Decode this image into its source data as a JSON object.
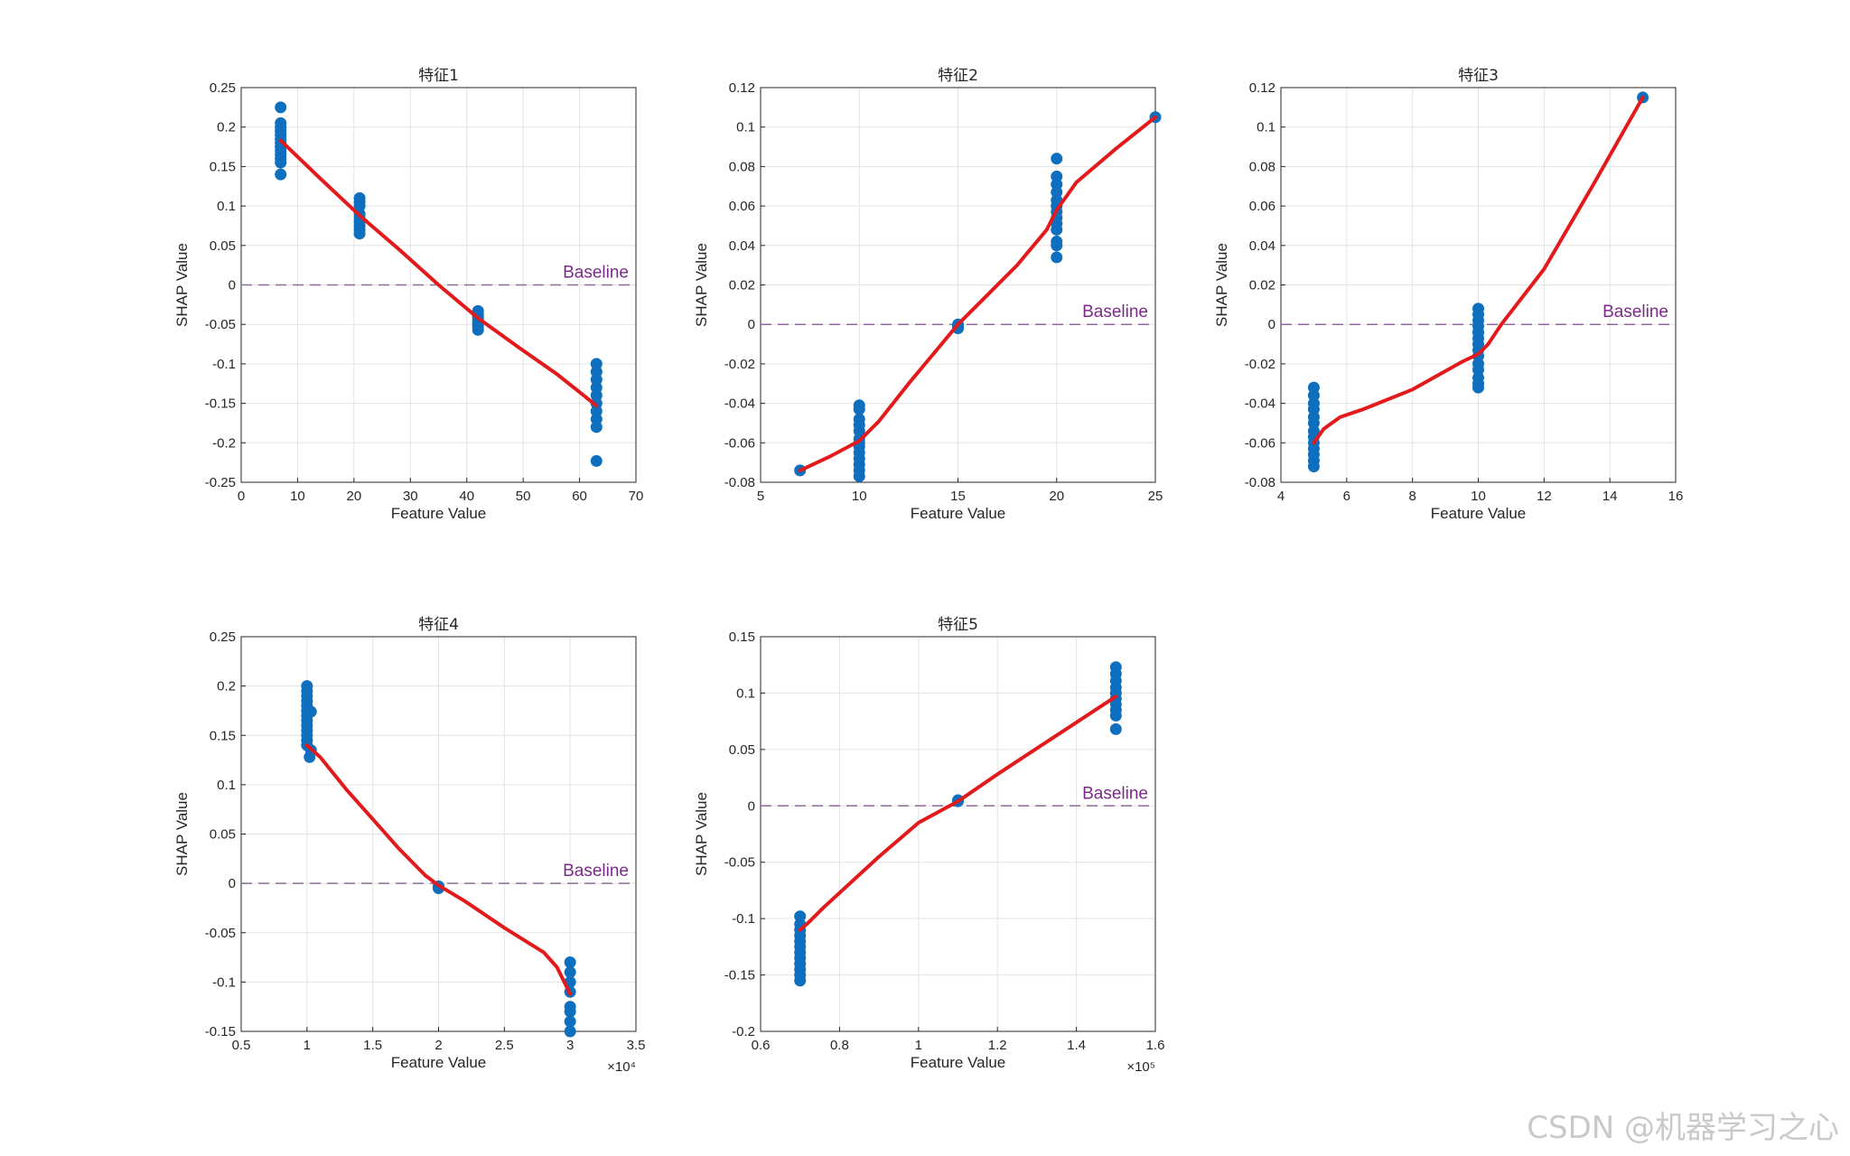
{
  "watermark": "CSDN @机器学习之心",
  "chart_data": [
    {
      "type": "scatter",
      "title": "特征1",
      "xlabel": "Feature Value",
      "ylabel": "SHAP Value",
      "xlim": [
        0,
        70
      ],
      "ylim": [
        -0.25,
        0.25
      ],
      "xticks": [
        0,
        10,
        20,
        30,
        40,
        50,
        60,
        70
      ],
      "xtick_labels": [
        "0",
        "10",
        "20",
        "30",
        "40",
        "50",
        "60",
        "70"
      ],
      "yticks": [
        -0.25,
        -0.2,
        -0.15,
        -0.1,
        -0.05,
        0,
        0.05,
        0.1,
        0.15,
        0.2,
        0.25
      ],
      "ytick_labels": [
        "-0.25",
        "-0.2",
        "-0.15",
        "-0.1",
        "-0.05",
        "0",
        "0.05",
        "0.1",
        "0.15",
        "0.2",
        "0.25"
      ],
      "x_multiplier": "",
      "grid": true,
      "baseline": {
        "y": 0,
        "label": "Baseline"
      },
      "series": [
        {
          "type": "scatter",
          "points": [
            [
              7,
              0.225
            ],
            [
              7,
              0.205
            ],
            [
              7,
              0.2
            ],
            [
              7,
              0.195
            ],
            [
              7,
              0.19
            ],
            [
              7,
              0.185
            ],
            [
              7,
              0.18
            ],
            [
              7,
              0.175
            ],
            [
              7,
              0.17
            ],
            [
              7,
              0.165
            ],
            [
              7,
              0.16
            ],
            [
              7,
              0.155
            ],
            [
              7,
              0.14
            ],
            [
              21,
              0.11
            ],
            [
              21,
              0.105
            ],
            [
              21,
              0.1
            ],
            [
              21,
              0.09
            ],
            [
              21,
              0.085
            ],
            [
              21,
              0.08
            ],
            [
              21,
              0.075
            ],
            [
              21,
              0.07
            ],
            [
              21,
              0.065
            ],
            [
              42,
              -0.033
            ],
            [
              42,
              -0.037
            ],
            [
              42,
              -0.04
            ],
            [
              42,
              -0.043
            ],
            [
              42,
              -0.047
            ],
            [
              42,
              -0.05
            ],
            [
              42,
              -0.053
            ],
            [
              42,
              -0.057
            ],
            [
              63,
              -0.1
            ],
            [
              63,
              -0.11
            ],
            [
              63,
              -0.12
            ],
            [
              63,
              -0.13
            ],
            [
              63,
              -0.14
            ],
            [
              63,
              -0.15
            ],
            [
              63,
              -0.16
            ],
            [
              63,
              -0.17
            ],
            [
              63,
              -0.18
            ],
            [
              63,
              -0.223
            ]
          ]
        },
        {
          "type": "line",
          "color": "#e31a1c",
          "points": [
            [
              7,
              0.183
            ],
            [
              14,
              0.135
            ],
            [
              21,
              0.088
            ],
            [
              28,
              0.045
            ],
            [
              35,
              0.0
            ],
            [
              42,
              -0.042
            ],
            [
              49,
              -0.078
            ],
            [
              56,
              -0.113
            ],
            [
              63,
              -0.153
            ]
          ]
        }
      ]
    },
    {
      "type": "scatter",
      "title": "特征2",
      "xlabel": "Feature Value",
      "ylabel": "SHAP Value",
      "xlim": [
        5,
        25
      ],
      "ylim": [
        -0.08,
        0.12
      ],
      "xticks": [
        5,
        10,
        15,
        20,
        25
      ],
      "xtick_labels": [
        "5",
        "10",
        "15",
        "20",
        "25"
      ],
      "yticks": [
        -0.08,
        -0.06,
        -0.04,
        -0.02,
        0,
        0.02,
        0.04,
        0.06,
        0.08,
        0.1,
        0.12
      ],
      "ytick_labels": [
        "-0.08",
        "-0.06",
        "-0.04",
        "-0.02",
        "0",
        "0.02",
        "0.04",
        "0.06",
        "0.08",
        "0.1",
        "0.12"
      ],
      "x_multiplier": "",
      "grid": true,
      "baseline": {
        "y": 0,
        "label": "Baseline"
      },
      "series": [
        {
          "type": "scatter",
          "points": [
            [
              7,
              -0.074
            ],
            [
              10,
              -0.041
            ],
            [
              10,
              -0.043
            ],
            [
              10,
              -0.048
            ],
            [
              10,
              -0.051
            ],
            [
              10,
              -0.054
            ],
            [
              10,
              -0.058
            ],
            [
              10,
              -0.06
            ],
            [
              10,
              -0.062
            ],
            [
              10,
              -0.065
            ],
            [
              10,
              -0.068
            ],
            [
              10,
              -0.071
            ],
            [
              10,
              -0.074
            ],
            [
              10,
              -0.077
            ],
            [
              15,
              -0.001
            ],
            [
              15,
              -0.002
            ],
            [
              15,
              0.0
            ],
            [
              20,
              0.084
            ],
            [
              20,
              0.075
            ],
            [
              20,
              0.071
            ],
            [
              20,
              0.067
            ],
            [
              20,
              0.063
            ],
            [
              20,
              0.06
            ],
            [
              20,
              0.057
            ],
            [
              20,
              0.054
            ],
            [
              20,
              0.051
            ],
            [
              20,
              0.048
            ],
            [
              20,
              0.042
            ],
            [
              20,
              0.04
            ],
            [
              20,
              0.034
            ],
            [
              25,
              0.105
            ]
          ]
        },
        {
          "type": "line",
          "color": "#e31a1c",
          "points": [
            [
              7,
              -0.074
            ],
            [
              8.5,
              -0.067
            ],
            [
              10,
              -0.059
            ],
            [
              11,
              -0.049
            ],
            [
              12.5,
              -0.03
            ],
            [
              14,
              -0.012
            ],
            [
              15,
              0.0
            ],
            [
              16.5,
              0.015
            ],
            [
              18,
              0.03
            ],
            [
              19.5,
              0.048
            ],
            [
              20,
              0.058
            ],
            [
              21,
              0.072
            ],
            [
              23,
              0.089
            ],
            [
              25,
              0.105
            ]
          ]
        }
      ]
    },
    {
      "type": "scatter",
      "title": "特征3",
      "xlabel": "Feature Value",
      "ylabel": "SHAP Value",
      "xlim": [
        4,
        16
      ],
      "ylim": [
        -0.08,
        0.12
      ],
      "xticks": [
        4,
        6,
        8,
        10,
        12,
        14,
        16
      ],
      "xtick_labels": [
        "4",
        "6",
        "8",
        "10",
        "12",
        "14",
        "16"
      ],
      "yticks": [
        -0.08,
        -0.06,
        -0.04,
        -0.02,
        0,
        0.02,
        0.04,
        0.06,
        0.08,
        0.1,
        0.12
      ],
      "ytick_labels": [
        "-0.08",
        "-0.06",
        "-0.04",
        "-0.02",
        "0",
        "0.02",
        "0.04",
        "0.06",
        "0.08",
        "0.1",
        "0.12"
      ],
      "x_multiplier": "",
      "grid": true,
      "baseline": {
        "y": 0,
        "label": "Baseline"
      },
      "series": [
        {
          "type": "scatter",
          "points": [
            [
              5,
              -0.032
            ],
            [
              5,
              -0.036
            ],
            [
              5,
              -0.04
            ],
            [
              5,
              -0.043
            ],
            [
              5,
              -0.047
            ],
            [
              5,
              -0.05
            ],
            [
              5,
              -0.054
            ],
            [
              5,
              -0.057
            ],
            [
              5,
              -0.06
            ],
            [
              5,
              -0.063
            ],
            [
              5,
              -0.066
            ],
            [
              5,
              -0.069
            ],
            [
              5,
              -0.072
            ],
            [
              10,
              0.008
            ],
            [
              10,
              0.005
            ],
            [
              10,
              0.002
            ],
            [
              10,
              -0.001
            ],
            [
              10,
              -0.004
            ],
            [
              10,
              -0.007
            ],
            [
              10,
              -0.01
            ],
            [
              10,
              -0.013
            ],
            [
              10,
              -0.016
            ],
            [
              10,
              -0.02
            ],
            [
              10,
              -0.023
            ],
            [
              10,
              -0.027
            ],
            [
              10,
              -0.03
            ],
            [
              10,
              -0.032
            ],
            [
              15,
              0.115
            ]
          ]
        },
        {
          "type": "line",
          "color": "#e31a1c",
          "points": [
            [
              5,
              -0.06
            ],
            [
              5.3,
              -0.053
            ],
            [
              5.8,
              -0.047
            ],
            [
              6.5,
              -0.043
            ],
            [
              8,
              -0.033
            ],
            [
              9.5,
              -0.019
            ],
            [
              10,
              -0.015
            ],
            [
              10.3,
              -0.01
            ],
            [
              10.7,
              0.0
            ],
            [
              12,
              0.028
            ],
            [
              13.5,
              0.071
            ],
            [
              15,
              0.115
            ]
          ]
        }
      ]
    },
    {
      "type": "scatter",
      "title": "特征4",
      "xlabel": "Feature Value",
      "ylabel": "SHAP Value",
      "xlim": [
        5000,
        35000
      ],
      "ylim": [
        -0.15,
        0.25
      ],
      "xticks": [
        5000,
        10000,
        15000,
        20000,
        25000,
        30000,
        35000
      ],
      "xtick_labels": [
        "0.5",
        "1",
        "1.5",
        "2",
        "2.5",
        "3",
        "3.5"
      ],
      "yticks": [
        -0.15,
        -0.1,
        -0.05,
        0,
        0.05,
        0.1,
        0.15,
        0.2,
        0.25
      ],
      "ytick_labels": [
        "-0.15",
        "-0.1",
        "-0.05",
        "0",
        "0.05",
        "0.1",
        "0.15",
        "0.2",
        "0.25"
      ],
      "x_multiplier": "×10⁴",
      "grid": true,
      "baseline": {
        "y": 0,
        "label": "Baseline"
      },
      "series": [
        {
          "type": "scatter",
          "points": [
            [
              10000,
              0.2
            ],
            [
              10000,
              0.195
            ],
            [
              10000,
              0.19
            ],
            [
              10000,
              0.185
            ],
            [
              10000,
              0.18
            ],
            [
              10000,
              0.175
            ],
            [
              10000,
              0.17
            ],
            [
              10000,
              0.165
            ],
            [
              10000,
              0.16
            ],
            [
              10000,
              0.155
            ],
            [
              10000,
              0.15
            ],
            [
              10000,
              0.145
            ],
            [
              10000,
              0.14
            ],
            [
              10300,
              0.174
            ],
            [
              10300,
              0.135
            ],
            [
              10200,
              0.128
            ],
            [
              20000,
              -0.003
            ],
            [
              20000,
              -0.005
            ],
            [
              30000,
              -0.08
            ],
            [
              30000,
              -0.09
            ],
            [
              30000,
              -0.1
            ],
            [
              30000,
              -0.11
            ],
            [
              30000,
              -0.125
            ],
            [
              30000,
              -0.13
            ],
            [
              30000,
              -0.14
            ],
            [
              30000,
              -0.15
            ]
          ]
        },
        {
          "type": "line",
          "color": "#e31a1c",
          "points": [
            [
              10000,
              0.14
            ],
            [
              11000,
              0.128
            ],
            [
              13000,
              0.095
            ],
            [
              15000,
              0.065
            ],
            [
              17000,
              0.035
            ],
            [
              19000,
              0.008
            ],
            [
              20000,
              -0.002
            ],
            [
              22000,
              -0.018
            ],
            [
              25000,
              -0.045
            ],
            [
              28000,
              -0.07
            ],
            [
              29000,
              -0.085
            ],
            [
              30000,
              -0.112
            ]
          ]
        }
      ]
    },
    {
      "type": "scatter",
      "title": "特征5",
      "xlabel": "Feature Value",
      "ylabel": "SHAP Value",
      "xlim": [
        60000,
        160000
      ],
      "ylim": [
        -0.2,
        0.15
      ],
      "xticks": [
        60000,
        80000,
        100000,
        120000,
        140000,
        160000
      ],
      "xtick_labels": [
        "0.6",
        "0.8",
        "1",
        "1.2",
        "1.4",
        "1.6"
      ],
      "yticks": [
        -0.2,
        -0.15,
        -0.1,
        -0.05,
        0,
        0.05,
        0.1,
        0.15
      ],
      "ytick_labels": [
        "-0.2",
        "-0.15",
        "-0.1",
        "-0.05",
        "0",
        "0.05",
        "0.1",
        "0.15"
      ],
      "x_multiplier": "×10⁵",
      "grid": true,
      "baseline": {
        "y": 0,
        "label": "Baseline"
      },
      "series": [
        {
          "type": "scatter",
          "points": [
            [
              70000,
              -0.098
            ],
            [
              70000,
              -0.105
            ],
            [
              70000,
              -0.11
            ],
            [
              70000,
              -0.115
            ],
            [
              70000,
              -0.12
            ],
            [
              70000,
              -0.125
            ],
            [
              70000,
              -0.13
            ],
            [
              70000,
              -0.135
            ],
            [
              70000,
              -0.14
            ],
            [
              70000,
              -0.145
            ],
            [
              70000,
              -0.15
            ],
            [
              70000,
              -0.155
            ],
            [
              110000,
              0.004
            ],
            [
              110000,
              0.005
            ],
            [
              150000,
              0.123
            ],
            [
              150000,
              0.117
            ],
            [
              150000,
              0.111
            ],
            [
              150000,
              0.105
            ],
            [
              150000,
              0.1
            ],
            [
              150000,
              0.095
            ],
            [
              150000,
              0.09
            ],
            [
              150000,
              0.085
            ],
            [
              150000,
              0.08
            ],
            [
              150000,
              0.068
            ]
          ]
        },
        {
          "type": "line",
          "color": "#e31a1c",
          "points": [
            [
              70000,
              -0.11
            ],
            [
              72000,
              -0.104
            ],
            [
              76000,
              -0.09
            ],
            [
              90000,
              -0.045
            ],
            [
              100000,
              -0.015
            ],
            [
              110000,
              0.004
            ],
            [
              120000,
              0.028
            ],
            [
              130000,
              0.051
            ],
            [
              140000,
              0.074
            ],
            [
              150000,
              0.097
            ]
          ]
        }
      ]
    }
  ]
}
